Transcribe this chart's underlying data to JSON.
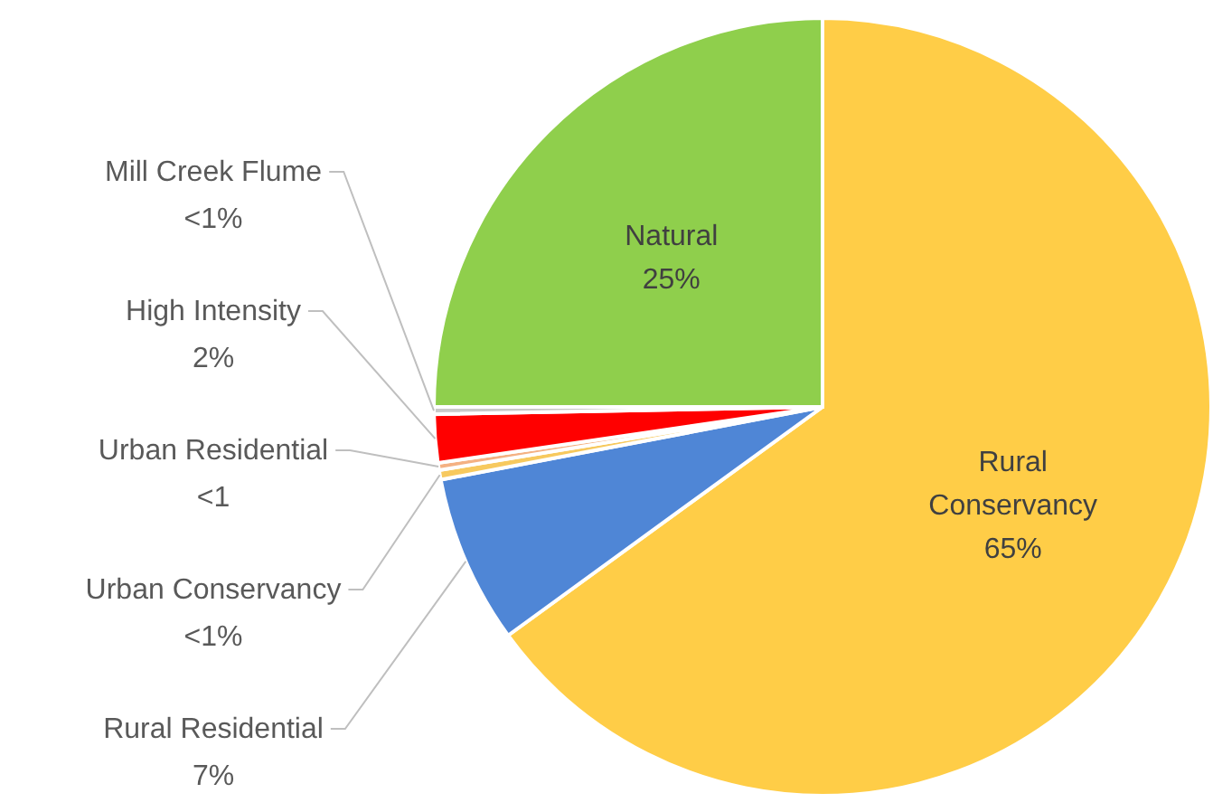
{
  "chart_data": {
    "type": "pie",
    "categories": [
      "Rural Conservancy",
      "Rural Residential",
      "Urban Conservancy",
      "Urban Residential",
      "High Intensity",
      "Mill Creek Flume",
      "Natural"
    ],
    "values": [
      65,
      7,
      0.4,
      0.3,
      2,
      0.3,
      25
    ],
    "value_labels": [
      "65%",
      "7%",
      "<1%",
      "<1",
      "2%",
      "<1%",
      "25%"
    ],
    "colors": [
      "#ffcd47",
      "#4f86d6",
      "#f7c95e",
      "#f4b183",
      "#ff0000",
      "#c9c9c9",
      "#8fcf4c"
    ]
  }
}
